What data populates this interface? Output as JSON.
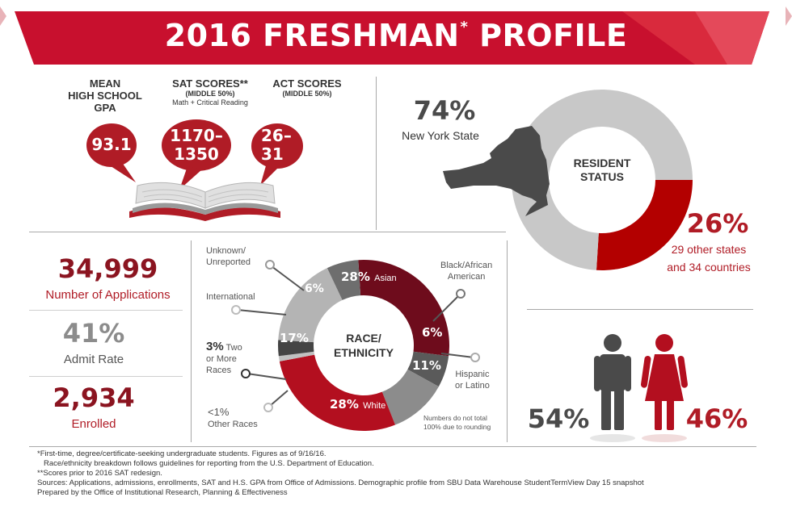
{
  "banner": {
    "title": "2016 FRESHMAN",
    "asterisk": "*",
    "title_end": " PROFILE",
    "color": "#c8102e"
  },
  "academics": {
    "gpa": {
      "label_line1": "MEAN",
      "label_line2": "HIGH SCHOOL",
      "label_line3": "GPA",
      "value": "93.1"
    },
    "sat": {
      "label": "SAT SCORES**",
      "sub1": "(MIDDLE 50%)",
      "sub2": "Math + Critical Reading",
      "value_line1": "1170–",
      "value_line2": "1350"
    },
    "act": {
      "label": "ACT SCORES",
      "sub1": "(MIDDLE 50%)",
      "value_line1": "26–",
      "value_line2": "31"
    },
    "bubble_color": "#b01c26",
    "book_icon": "open-book-icon"
  },
  "resident": {
    "ny_percent": "74%",
    "ny_label": "New York State",
    "center_line1": "RESIDENT",
    "center_line2": "STATUS",
    "other_percent": "26%",
    "other_line1": "29 other states",
    "other_line2": "and 34 countries",
    "ny_fraction": 0.74,
    "other_fraction": 0.26,
    "ny_color": "#c8c8c8",
    "other_color": "#b30000",
    "state_icon": "new-york-state-map-icon"
  },
  "admissions": {
    "applications_value": "34,999",
    "applications_label": "Number of Applications",
    "admit_value": "41%",
    "admit_label": "Admit Rate",
    "enrolled_value": "2,934",
    "enrolled_label": "Enrolled"
  },
  "race": {
    "center_line1": "RACE/",
    "center_line2": "ETHNICITY",
    "note_line1": "Numbers do not total",
    "note_line2": "100% due to rounding",
    "segments": [
      {
        "name": "Asian",
        "value": 28,
        "label": "28%",
        "color": "#6e0c1c"
      },
      {
        "name": "Black/African American",
        "value": 6,
        "label": "6%",
        "color": "#5a5a5a"
      },
      {
        "name": "Hispanic or Latino",
        "value": 11,
        "label": "11%",
        "color": "#8c8c8c"
      },
      {
        "name": "White",
        "value": 28,
        "label": "28%",
        "color": "#b30f1f"
      },
      {
        "name": "Other Races",
        "value": 1,
        "label": "<1%",
        "color": "#c0c0c0"
      },
      {
        "name": "Two or More Races",
        "value": 3,
        "label": "3%",
        "color": "#444444"
      },
      {
        "name": "International",
        "value": 17,
        "label": "17%",
        "color": "#b4b4b4"
      },
      {
        "name": "Unknown/Unreported",
        "value": 6,
        "label": "6%",
        "color": "#6e6e6e"
      }
    ],
    "callouts": {
      "unknown_line1": "Unknown/",
      "unknown_line2": "Unreported",
      "international": "International",
      "two_more_pct": "3%",
      "two_more_line1": "Two",
      "two_more_line2": "or More",
      "two_more_line3": "Races",
      "other_pct": "<1%",
      "other_label": "Other Races",
      "black_line1": "Black/African",
      "black_line2": "American",
      "hispanic_line1": "Hispanic",
      "hispanic_line2": "or Latino",
      "asian_name": "Asian",
      "white_name": "White"
    }
  },
  "gender": {
    "male_percent": "54%",
    "female_percent": "46%",
    "male_icon": "male-figure-icon",
    "female_icon": "female-figure-icon",
    "male_color": "#4a4a4a",
    "female_color": "#b30f1f"
  },
  "footnotes": [
    "*First-time, degree/certificate-seeking undergraduate students. Figures as of 9/16/16.",
    "  Race/ethnicity breakdown follows guidelines for reporting from the U.S. Department of Education.",
    "**Scores prior to 2016 SAT redesign.",
    "Sources: Applications, admissions, enrollments, SAT and H.S. GPA from Office of Admissions. Demographic profile from SBU Data Warehouse StudentTermView Day 15 snapshot",
    "Prepared by the Office of Institutional Research, Planning & Effectiveness"
  ]
}
